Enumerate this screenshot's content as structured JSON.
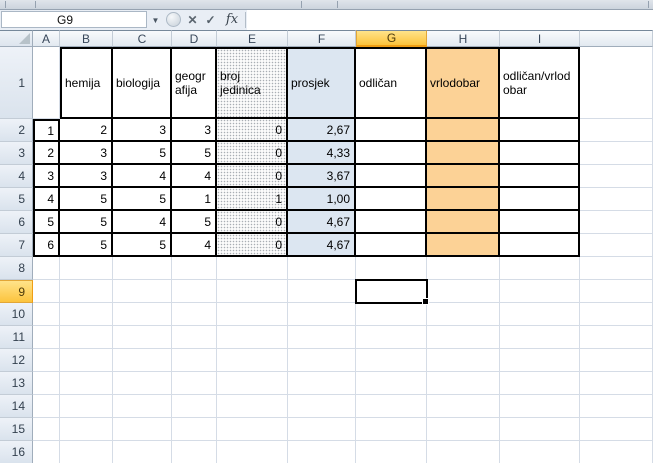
{
  "formula_bar": {
    "name_box": "G9",
    "formula_value": "",
    "icons": {
      "dropdown": "▼",
      "cancel": "✕",
      "enter": "✓",
      "insert_function": "fx"
    }
  },
  "sheet": {
    "column_labels": [
      "A",
      "B",
      "C",
      "D",
      "E",
      "F",
      "G",
      "H",
      "I",
      ""
    ],
    "selected_column": "G",
    "selected_row": 9,
    "visible_rows": 16,
    "header_cells": {
      "B": "hemija",
      "C": "biologija",
      "D": "geografija",
      "E": "broj jedinica",
      "F": "prosjek",
      "G": "odličan",
      "H": "vrlodobar",
      "I": "odličan/vrlodobar"
    },
    "rows": [
      {
        "A": "1",
        "B": "2",
        "C": "3",
        "D": "3",
        "E": "0",
        "F": "2,67"
      },
      {
        "A": "2",
        "B": "3",
        "C": "5",
        "D": "5",
        "E": "0",
        "F": "4,33"
      },
      {
        "A": "3",
        "B": "3",
        "C": "4",
        "D": "4",
        "E": "0",
        "F": "3,67"
      },
      {
        "A": "4",
        "B": "5",
        "C": "5",
        "D": "1",
        "E": "1",
        "F": "1,00"
      },
      {
        "A": "5",
        "B": "5",
        "C": "4",
        "D": "5",
        "E": "0",
        "F": "4,67"
      },
      {
        "A": "6",
        "B": "5",
        "C": "5",
        "D": "4",
        "E": "0",
        "F": "4,67"
      }
    ]
  },
  "colors": {
    "highlight_fill": "#FCD296",
    "average_fill": "#DCE6F1",
    "selected_header": "#FCC33C",
    "table_border": "#000000",
    "error_indicator": "#1F7A3D"
  }
}
